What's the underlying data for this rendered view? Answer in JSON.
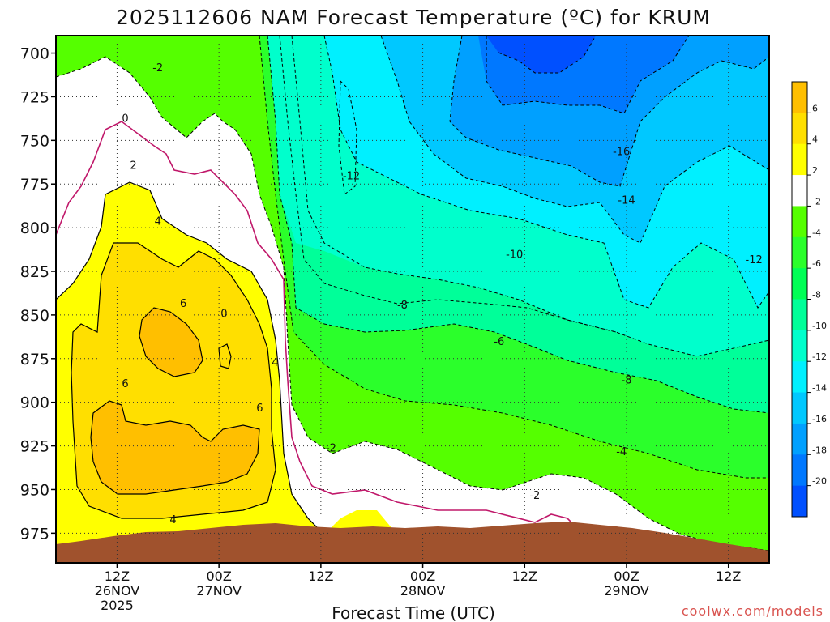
{
  "title": "2025112606 NAM Forecast Temperature (ºC) for KRUM",
  "credit": "coolwx.com/models",
  "chart_data": {
    "type": "contour",
    "title": "2025112606 NAM Forecast Temperature (ºC) for KRUM",
    "xlabel": "Forecast Time (UTC)",
    "ylabel": "",
    "y_levels_hpa": [
      700,
      725,
      750,
      775,
      800,
      825,
      850,
      875,
      900,
      925,
      950,
      975
    ],
    "ylim": [
      690,
      992
    ],
    "xlim_hours": [
      -6,
      64
    ],
    "x_ticks": [
      {
        "hour": 0,
        "label1": "12Z",
        "label2": "26NOV",
        "label3": "2025"
      },
      {
        "hour": 10,
        "label1": "00Z",
        "label2": "27NOV",
        "label3": ""
      },
      {
        "hour": 20,
        "label1": "12Z",
        "label2": "",
        "label3": ""
      },
      {
        "hour": 30,
        "label1": "00Z",
        "label2": "28NOV",
        "label3": ""
      },
      {
        "hour": 40,
        "label1": "12Z",
        "label2": "",
        "label3": ""
      },
      {
        "hour": 50,
        "label1": "00Z",
        "label2": "29NOV",
        "label3": ""
      },
      {
        "hour": 60,
        "label1": "12Z",
        "label2": "",
        "label3": ""
      }
    ],
    "colorbar": {
      "tick_labels": [
        "6",
        "4",
        "2",
        "-2",
        "-4",
        "-6",
        "-8",
        "-10",
        "-12",
        "-14",
        "-16",
        "-18",
        "-20"
      ],
      "bands": [
        {
          "color": "#ffbf00"
        },
        {
          "color": "#ffdf00"
        },
        {
          "color": "#ffff00"
        },
        {
          "color": "#ffffff"
        },
        {
          "color": "#55ff00"
        },
        {
          "color": "#2bff2b"
        },
        {
          "color": "#00ff55"
        },
        {
          "color": "#00ff99"
        },
        {
          "color": "#00ffcc"
        },
        {
          "color": "#00f0ff"
        },
        {
          "color": "#00c8ff"
        },
        {
          "color": "#00a0ff"
        },
        {
          "color": "#0078ff"
        },
        {
          "color": "#0050ff"
        }
      ]
    },
    "contour_labels": [
      {
        "text": "-2",
        "hour": 4,
        "p": 708
      },
      {
        "text": "0",
        "hour": 0.8,
        "p": 737
      },
      {
        "text": "2",
        "hour": 1.6,
        "p": 764
      },
      {
        "text": "4",
        "hour": 4,
        "p": 796
      },
      {
        "text": "6",
        "hour": 6.5,
        "p": 843
      },
      {
        "text": "0",
        "hour": 10.5,
        "p": 849
      },
      {
        "text": "6",
        "hour": 0.8,
        "p": 889
      },
      {
        "text": "6",
        "hour": 14,
        "p": 903
      },
      {
        "text": "4",
        "hour": 15.5,
        "p": 877
      },
      {
        "text": "4",
        "hour": 5.5,
        "p": 967
      },
      {
        "text": "-12",
        "hour": 23,
        "p": 770
      },
      {
        "text": "-8",
        "hour": 28,
        "p": 844
      },
      {
        "text": "-10",
        "hour": 39,
        "p": 815
      },
      {
        "text": "-6",
        "hour": 37.5,
        "p": 865
      },
      {
        "text": "-2",
        "hour": 21,
        "p": 926
      },
      {
        "text": "-2",
        "hour": 41,
        "p": 953
      },
      {
        "text": "-4",
        "hour": 49.5,
        "p": 928
      },
      {
        "text": "-8",
        "hour": 50,
        "p": 887
      },
      {
        "text": "-14",
        "hour": 50,
        "p": 784
      },
      {
        "text": "-16",
        "hour": 49.5,
        "p": 756
      },
      {
        "text": "-12",
        "hour": 62.5,
        "p": 818
      }
    ],
    "grid": true,
    "terrain_color": "#a0522d"
  }
}
